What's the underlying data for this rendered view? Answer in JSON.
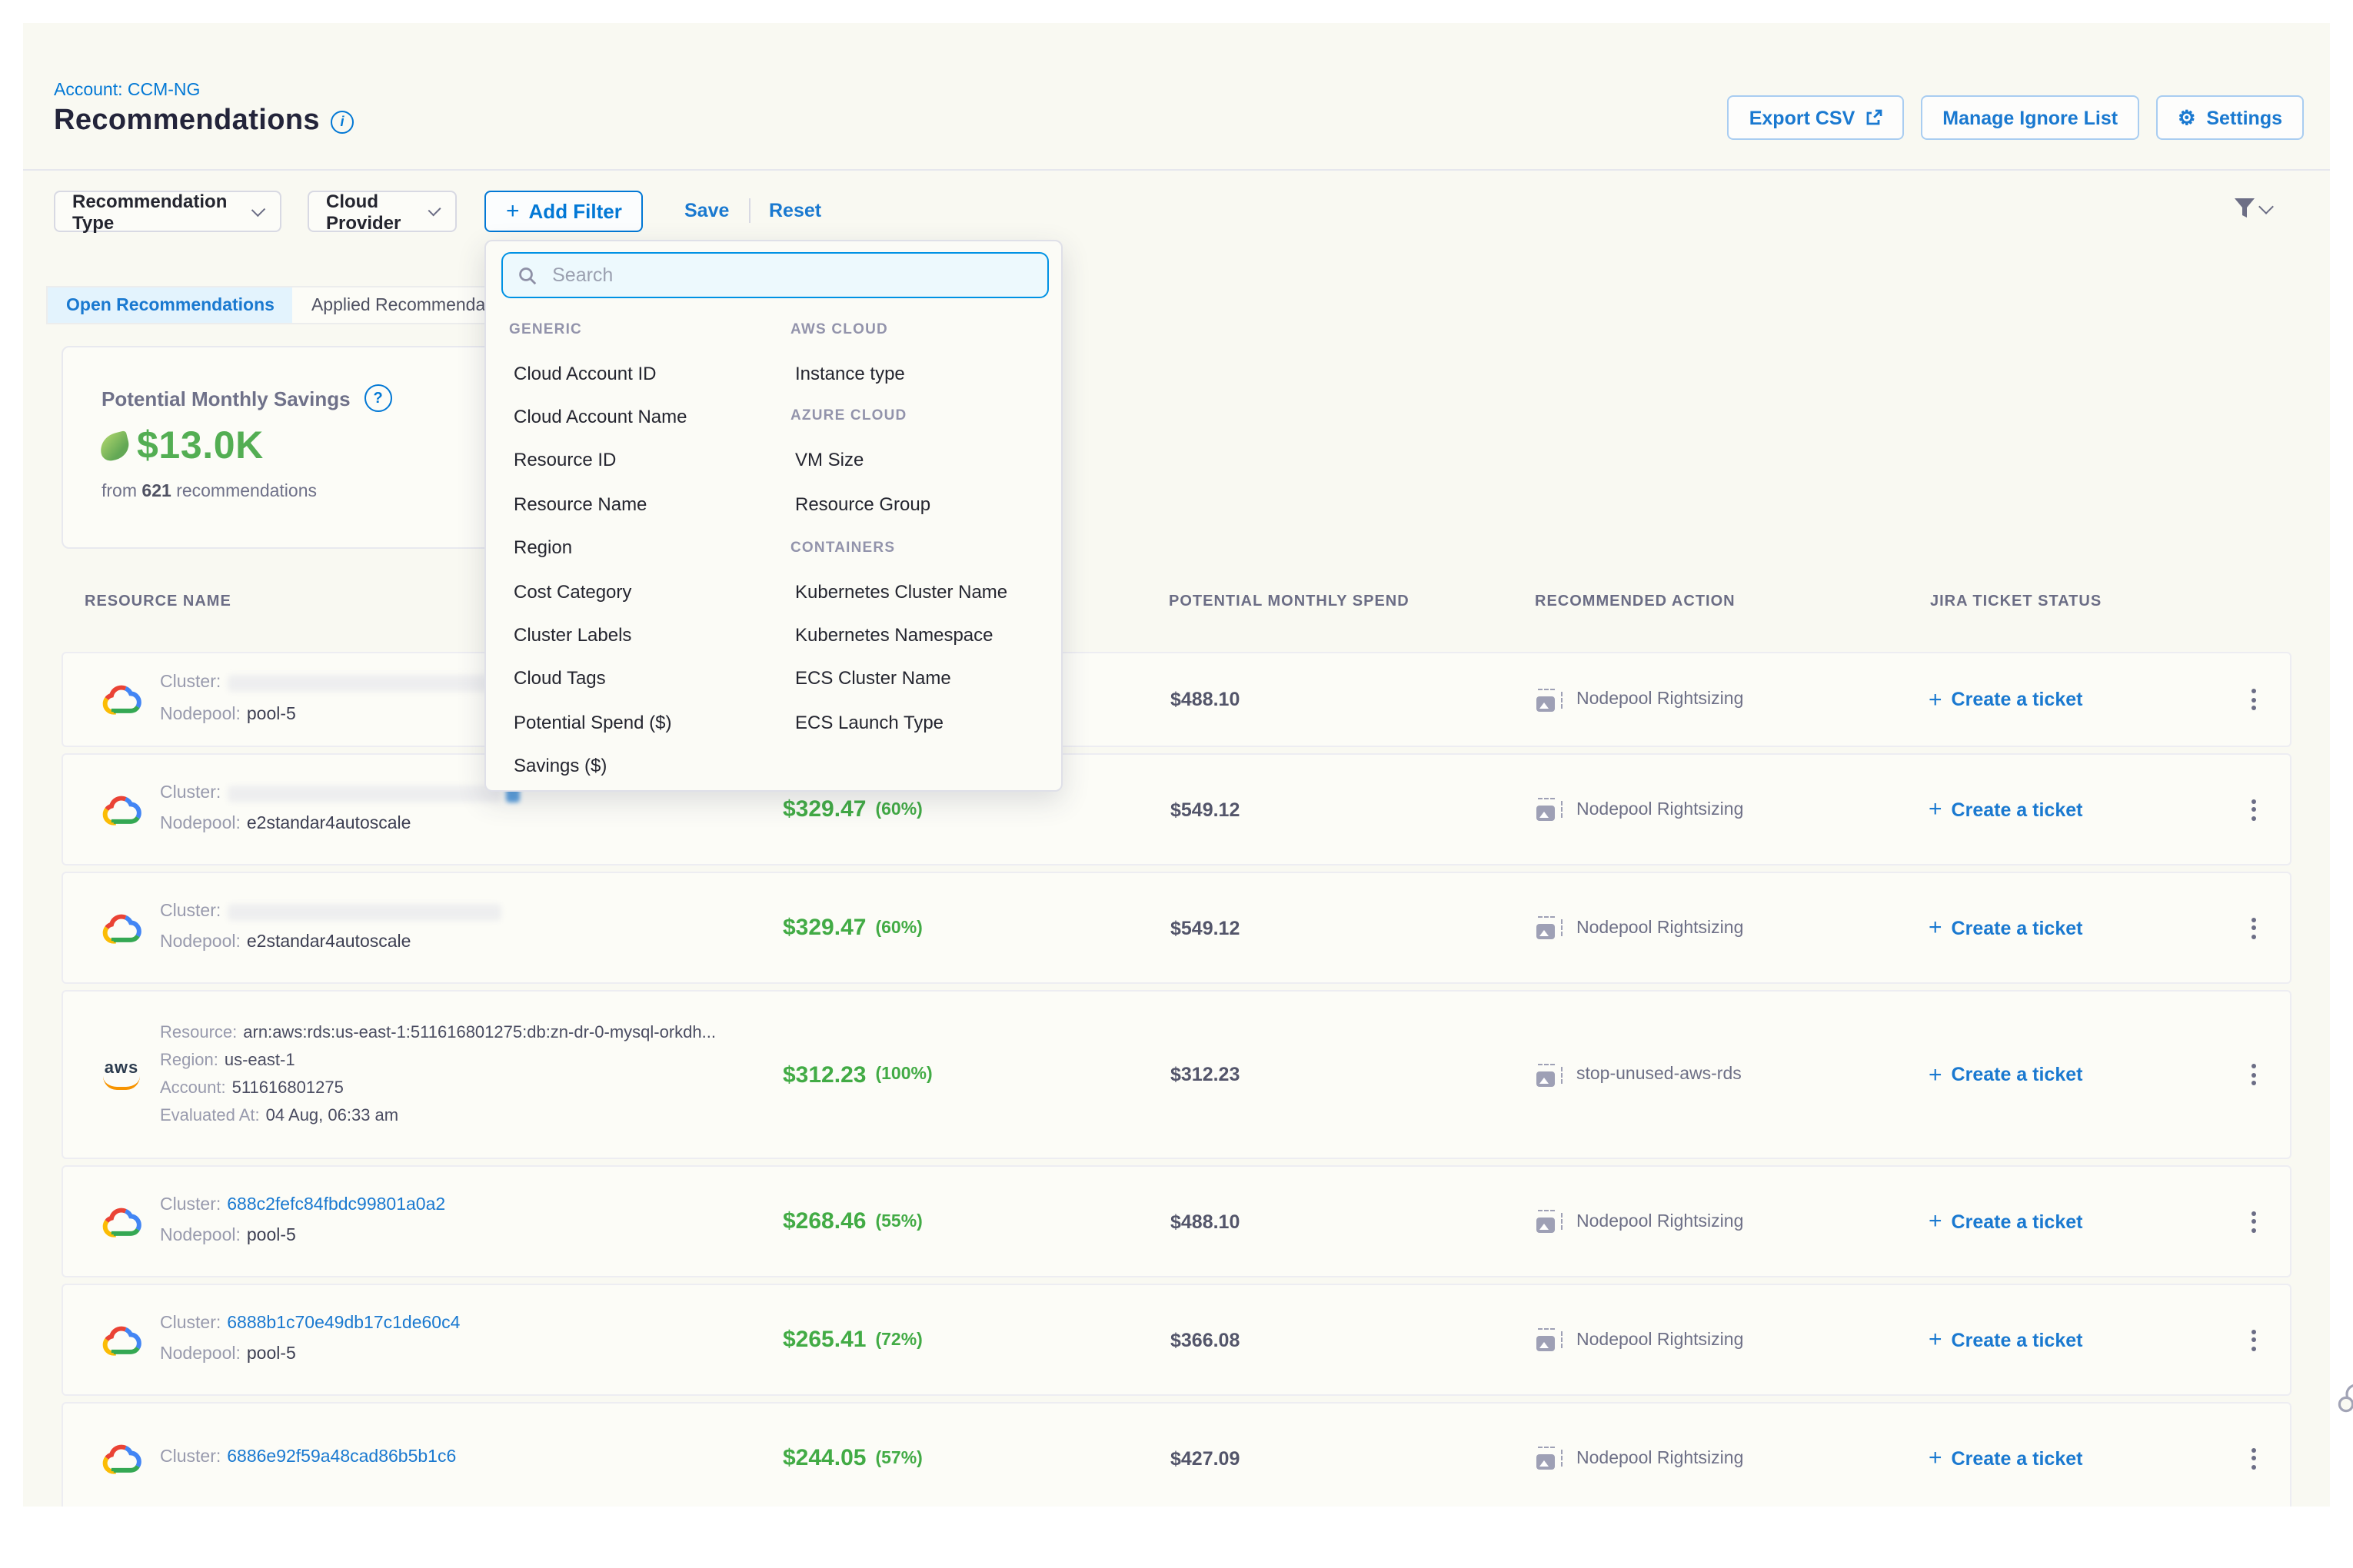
{
  "page": {
    "account_breadcrumb": "Account: CCM-NG",
    "title": "Recommendations"
  },
  "header_actions": {
    "export_csv": "Export CSV",
    "manage_ignore_list": "Manage Ignore List",
    "settings": "Settings"
  },
  "filter_bar": {
    "recommendation_type": "Recommendation Type",
    "cloud_provider": "Cloud Provider",
    "add_filter": "Add Filter",
    "save": "Save",
    "reset": "Reset"
  },
  "filter_popover": {
    "search_placeholder": "Search",
    "columns": [
      {
        "sections": [
          {
            "header": "GENERIC",
            "items": [
              "Cloud Account ID",
              "Cloud Account Name",
              "Resource ID",
              "Resource Name",
              "Region",
              "Cost Category",
              "Cluster Labels",
              "Cloud Tags",
              "Potential Spend ($)",
              "Savings ($)"
            ]
          }
        ]
      },
      {
        "sections": [
          {
            "header": "AWS CLOUD",
            "items": [
              "Instance type"
            ]
          },
          {
            "header": "AZURE CLOUD",
            "items": [
              "VM Size",
              "Resource Group"
            ]
          },
          {
            "header": "CONTAINERS",
            "items": [
              "Kubernetes Cluster Name",
              "Kubernetes Namespace",
              "ECS Cluster Name",
              "ECS Launch Type"
            ]
          }
        ]
      }
    ]
  },
  "tabs": {
    "open": "Open Recommendations",
    "applied": "Applied Recommendations"
  },
  "savings_card": {
    "title": "Potential Monthly Savings",
    "amount": "$13.0K",
    "from_text": "from",
    "count": "621",
    "recommendations_text": "recommendations"
  },
  "table": {
    "headers": [
      "RESOURCE NAME",
      "POTENTIAL MONTHLY SPEND",
      "RECOMMENDED ACTION",
      "JIRA TICKET STATUS"
    ],
    "create_ticket_label": "Create a ticket",
    "rows": [
      {
        "provider": "gcp",
        "lines": [
          {
            "label": "Cluster:",
            "redacted": true,
            "redact_w": 170
          },
          {
            "label": "Nodepool:",
            "value": "pool-5"
          }
        ],
        "savings": null,
        "spend": "$488.10",
        "action": "Nodepool Rightsizing"
      },
      {
        "provider": "gcp",
        "lines": [
          {
            "label": "Cluster:",
            "redacted": true,
            "redact_w": 178,
            "link_fragment": true
          },
          {
            "label": "Nodepool:",
            "value": "e2standar4autoscale"
          }
        ],
        "savings": {
          "amount": "$329.47",
          "percent": "(60%)"
        },
        "spend": "$549.12",
        "action": "Nodepool Rightsizing"
      },
      {
        "provider": "gcp",
        "lines": [
          {
            "label": "Cluster:",
            "redacted": true,
            "redact_w": 178
          },
          {
            "label": "Nodepool:",
            "value": "e2standar4autoscale"
          }
        ],
        "savings": {
          "amount": "$329.47",
          "percent": "(60%)"
        },
        "spend": "$549.12",
        "action": "Nodepool Rightsizing"
      },
      {
        "provider": "aws",
        "small": true,
        "lines": [
          {
            "label": "Resource:",
            "value": "arn:aws:rds:us-east-1:511616801275:db:zn-dr-0-mysql-orkdh..."
          },
          {
            "label": "Region:",
            "value": "us-east-1"
          },
          {
            "label": "Account:",
            "value": "511616801275"
          },
          {
            "label": "Evaluated At:",
            "value": "04 Aug, 06:33 am"
          }
        ],
        "savings": {
          "amount": "$312.23",
          "percent": "(100%)"
        },
        "spend": "$312.23",
        "action": "stop-unused-aws-rds"
      },
      {
        "provider": "gcp",
        "lines": [
          {
            "label": "Cluster:",
            "value": "688c2fefc84fbdc99801a0a2",
            "link": true
          },
          {
            "label": "Nodepool:",
            "value": "pool-5"
          }
        ],
        "savings": {
          "amount": "$268.46",
          "percent": "(55%)"
        },
        "spend": "$488.10",
        "action": "Nodepool Rightsizing"
      },
      {
        "provider": "gcp",
        "lines": [
          {
            "label": "Cluster:",
            "value": "6888b1c70e49db17c1de60c4",
            "link": true
          },
          {
            "label": "Nodepool:",
            "value": "pool-5"
          }
        ],
        "savings": {
          "amount": "$265.41",
          "percent": "(72%)"
        },
        "spend": "$366.08",
        "action": "Nodepool Rightsizing"
      },
      {
        "provider": "gcp",
        "lines": [
          {
            "label": "Cluster:",
            "value": "6886e92f59a48cad86b5b1c6",
            "link": true
          }
        ],
        "savings": {
          "amount": "$244.05",
          "percent": "(57%)"
        },
        "spend": "$427.09",
        "action": "Nodepool Rightsizing"
      }
    ]
  },
  "icons": {
    "info_letter": "i",
    "question_mark": "?",
    "gear": "⚙",
    "plus": "+"
  }
}
